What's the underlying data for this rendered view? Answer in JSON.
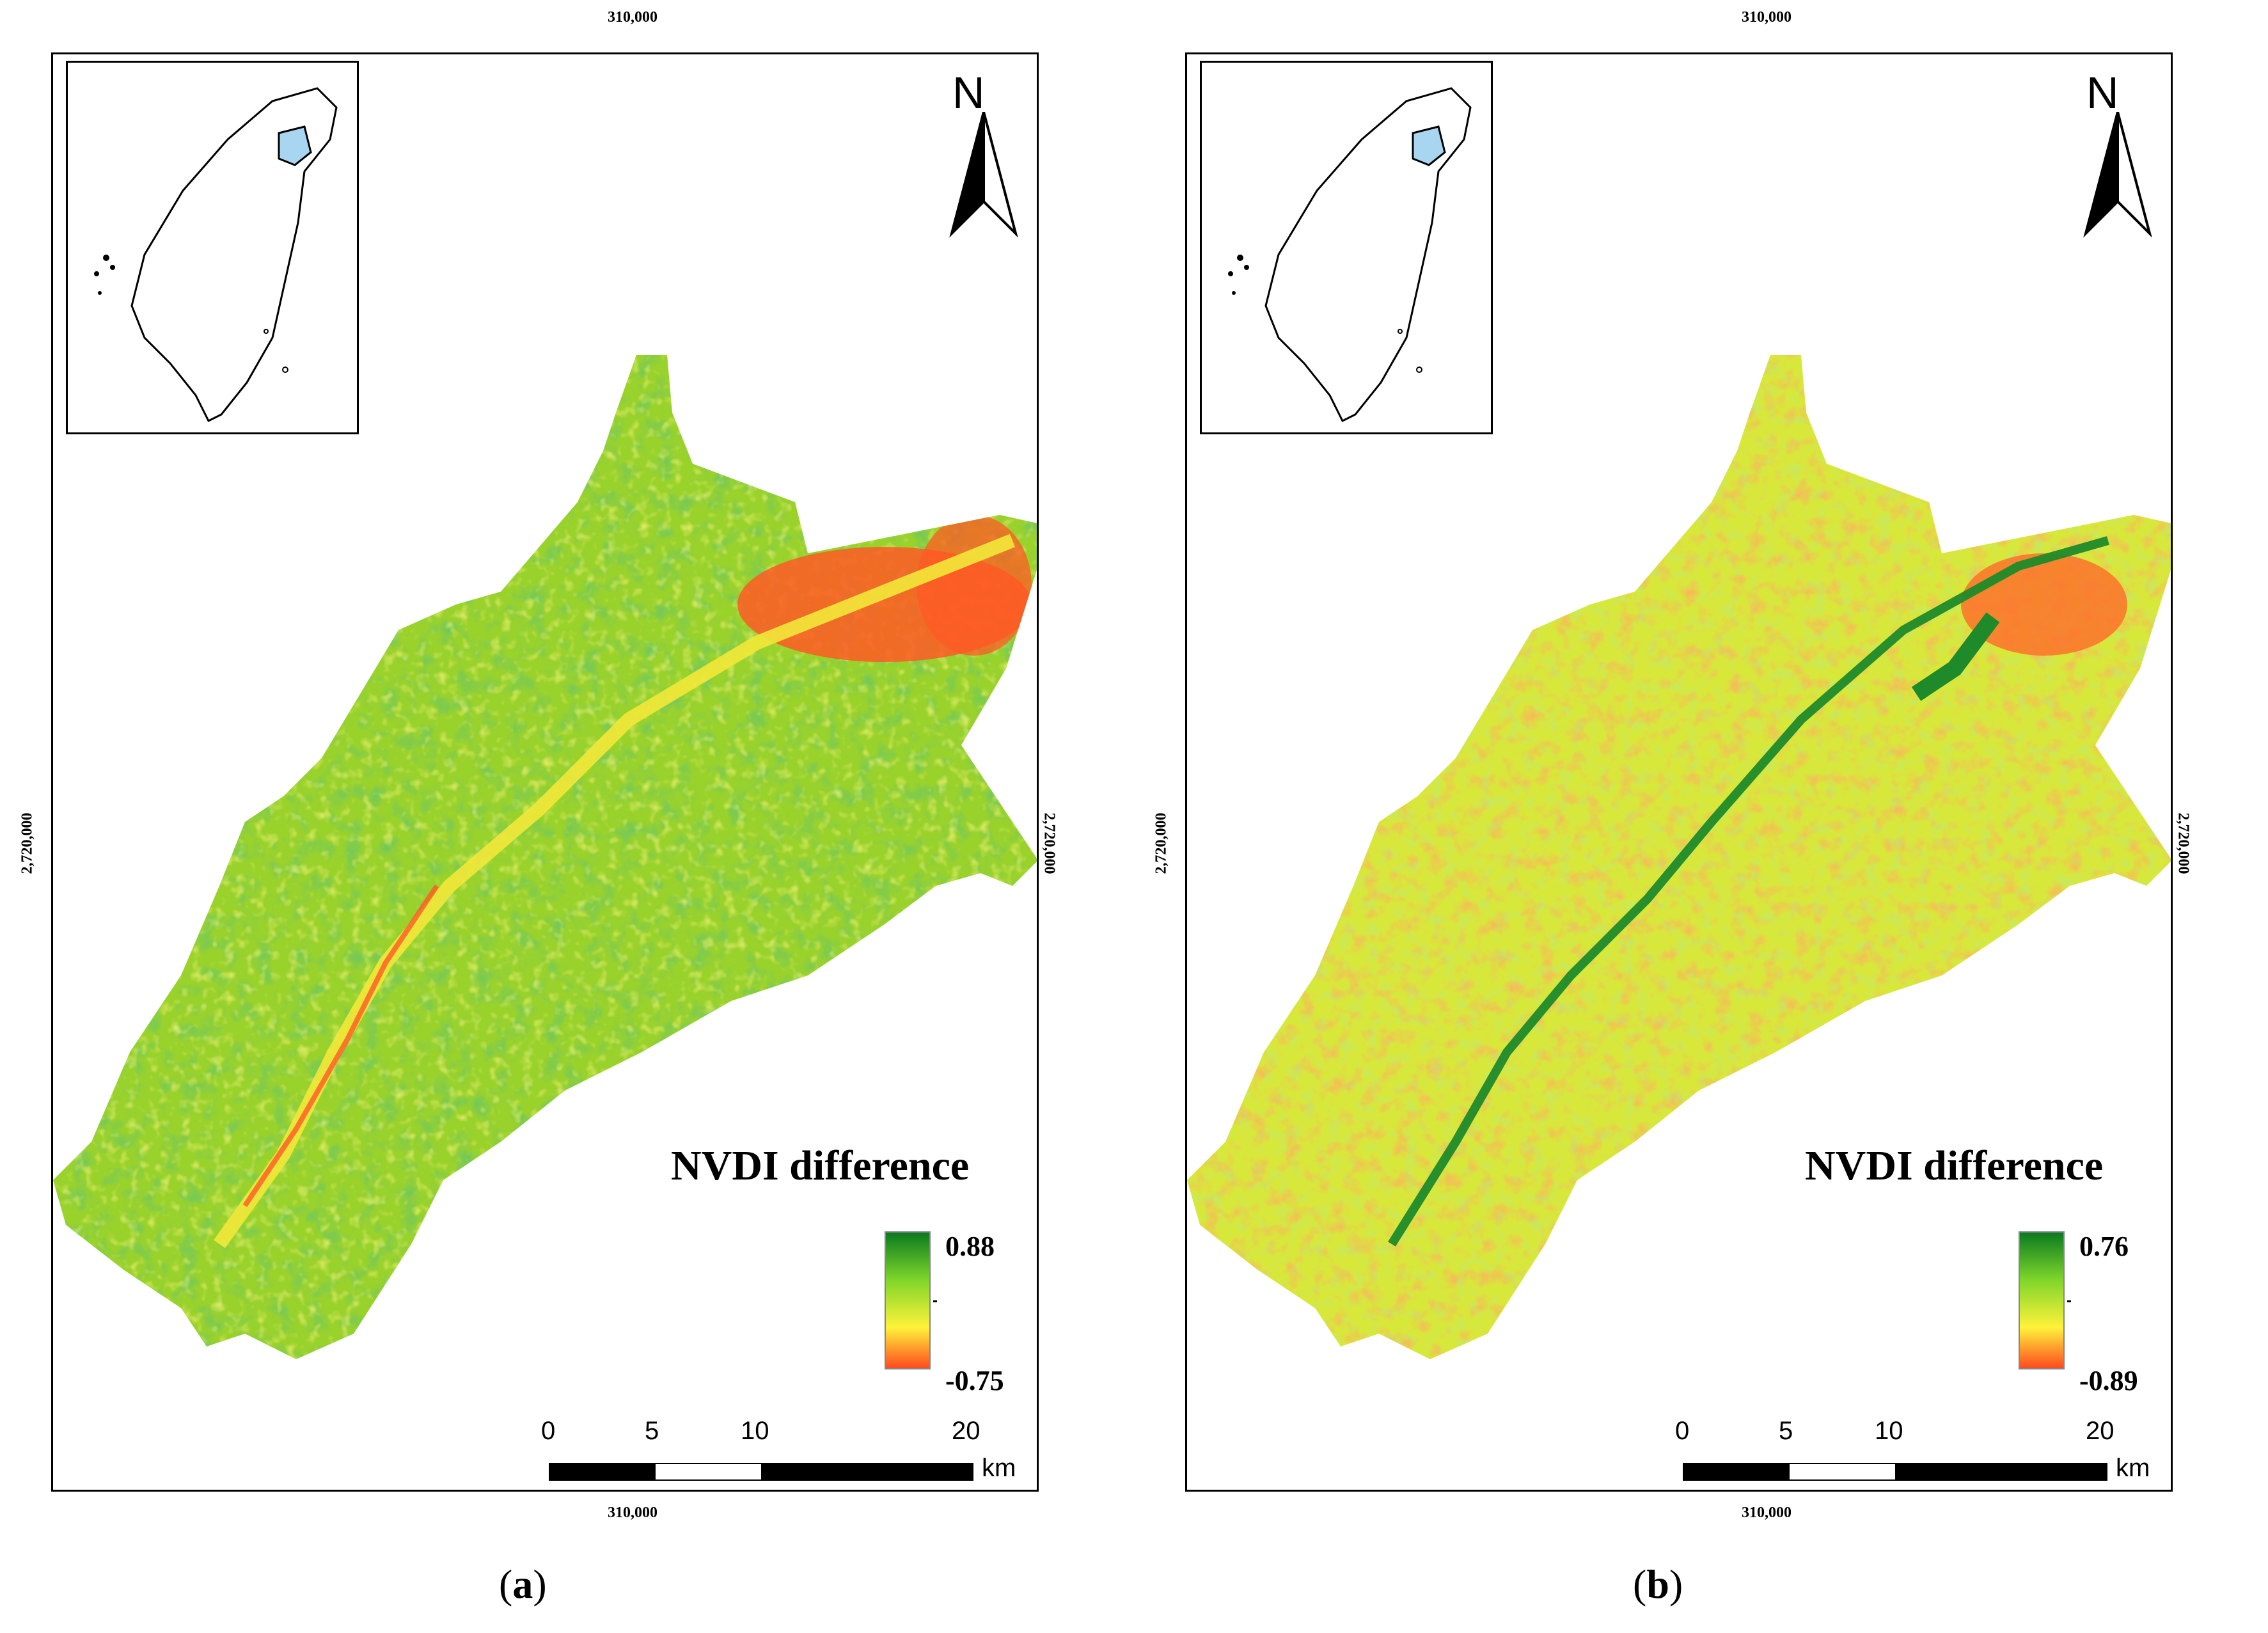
{
  "panels": [
    {
      "id": "a",
      "coords": {
        "top": "310,000",
        "bottom": "310,000",
        "left": "2,720,000",
        "right": "2,720,000"
      },
      "north_label": "N",
      "legend": {
        "title": "NVDI difference",
        "max": "0.88",
        "min": "-0.75",
        "colors": [
          "#0a7a20",
          "#7fd62a",
          "#fff23a",
          "#ff4a1e"
        ]
      },
      "scale": {
        "labels": [
          "0",
          "5",
          "10",
          "20"
        ],
        "unit": "km"
      },
      "label_open": "(",
      "label_letter": "a",
      "label_close": ")",
      "map_colors": {
        "base": "#9ad22c",
        "high": "#1e8a2a",
        "low": "#ff5a24",
        "mid": "#e9ee3a"
      },
      "icons": [
        "taiwan-inset-map",
        "north-arrow-icon"
      ]
    },
    {
      "id": "b",
      "coords": {
        "top": "310,000",
        "bottom": "310,000",
        "left": "2,720,000",
        "right": "2,720,000"
      },
      "north_label": "N",
      "legend": {
        "title": "NVDI difference",
        "max": "0.76",
        "min": "-0.89",
        "colors": [
          "#0a7a20",
          "#7fd62a",
          "#fff23a",
          "#ff4a1e"
        ]
      },
      "scale": {
        "labels": [
          "0",
          "5",
          "10",
          "20"
        ],
        "unit": "km"
      },
      "label_open": "(",
      "label_letter": "b",
      "label_close": ")",
      "map_colors": {
        "base": "#d8e83a",
        "high": "#1e8a2a",
        "low": "#ff6a2a",
        "mid": "#f4e23a"
      },
      "icons": [
        "taiwan-inset-map",
        "north-arrow-icon"
      ]
    }
  ]
}
